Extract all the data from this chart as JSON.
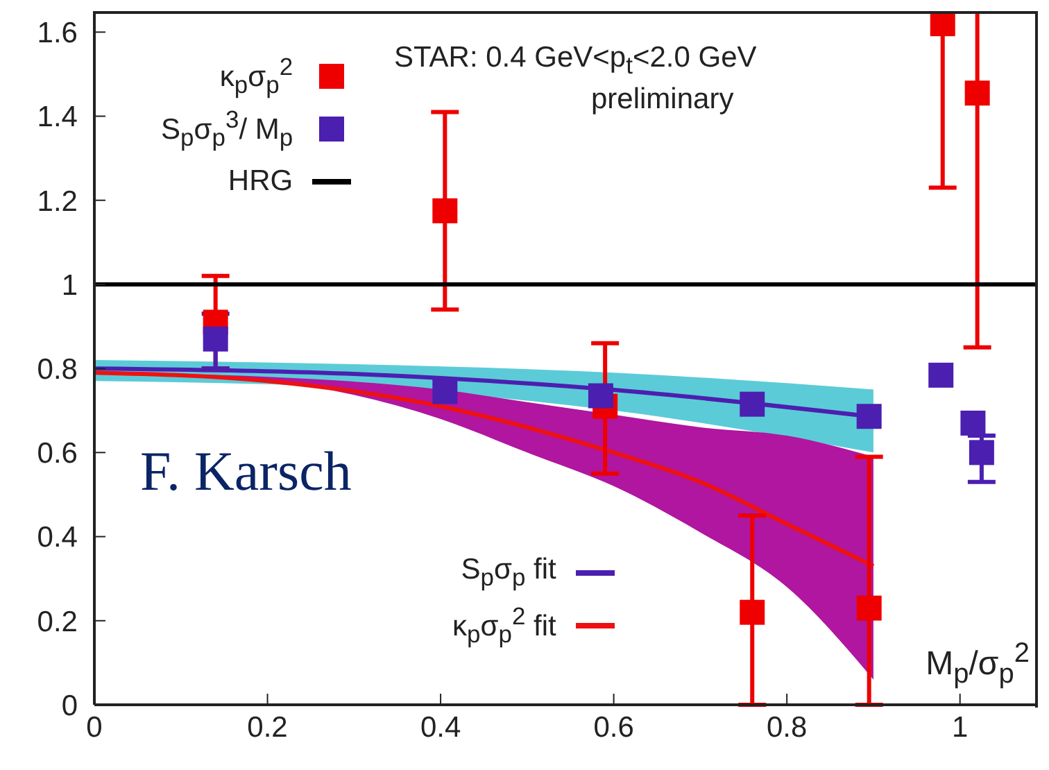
{
  "chart_data": {
    "type": "scatter",
    "xlabel": "M$_{p}$/σ$_{p}$$^{2}$",
    "annotations": [
      "STAR: 0.4 GeV<p$_{t}$<2.0 GeV",
      "preliminary",
      "F. Karsch"
    ],
    "xlim": [
      0,
      1.09
    ],
    "xticks": [
      0,
      0.2,
      0.4,
      0.6,
      0.8,
      1
    ],
    "ylim": [
      0,
      1.65
    ],
    "yticks": [
      0,
      0.2,
      0.4,
      0.6,
      0.8,
      1,
      1.2,
      1.4,
      1.6
    ],
    "marker": "square",
    "legend": "top left",
    "grid": false,
    "ref_lines": [
      {
        "axis": "y",
        "value": 1,
        "label": "HRG",
        "color": "#000000"
      }
    ],
    "series": [
      {
        "type": "line",
        "name": "S$_{p}$σ$_{p}$ fit",
        "color": "#4b1fb0",
        "marker": "none",
        "x": [
          0,
          0.3,
          0.6,
          0.9
        ],
        "values": [
          0.8,
          0.787,
          0.749,
          0.685
        ],
        "lower": [
          0.77,
          0.755,
          0.7,
          0.6
        ],
        "upper": [
          0.82,
          0.81,
          0.79,
          0.75
        ]
      },
      {
        "type": "line",
        "name": "κ$_{p}$σ$_{p}$$^{2}$ fit",
        "color": "#ee1111",
        "marker": "none",
        "x": [
          0,
          0.2,
          0.4,
          0.5,
          0.6,
          0.7,
          0.8,
          0.9
        ],
        "values": [
          0.79,
          0.77,
          0.71,
          0.66,
          0.6,
          0.53,
          0.43,
          0.33
        ],
        "lower": [
          0.79,
          0.77,
          0.68,
          0.6,
          0.52,
          0.41,
          0.28,
          0.06
        ],
        "upper": [
          0.79,
          0.78,
          0.75,
          0.72,
          0.69,
          0.66,
          0.64,
          0.59
        ]
      },
      {
        "name": "κ$_{p}$σ$_{p}$$^{2}$",
        "color": "#ee0000",
        "x": [
          0.14,
          0.405,
          0.59,
          0.76,
          0.895,
          0.98,
          1.02
        ],
        "values": [
          0.91,
          1.175,
          0.71,
          0.22,
          0.23,
          1.62,
          1.455
        ],
        "errors": [
          [
            0.8,
            1.02
          ],
          [
            0.94,
            1.41
          ],
          [
            0.55,
            0.86
          ],
          [
            0,
            0.45
          ],
          [
            0,
            0.59
          ],
          [
            1.23,
            1.65
          ],
          [
            0.85,
            1.65
          ]
        ]
      },
      {
        "name": "S$_{p}$σ$_{p}$$^{3}$/ M$_{p}$",
        "color": "#4b1fb0",
        "x": [
          0.14,
          0.405,
          0.585,
          0.76,
          0.895,
          0.978,
          1.015,
          1.025
        ],
        "values": [
          0.87,
          0.745,
          0.735,
          0.715,
          0.686,
          0.784,
          0.67,
          0.6
        ],
        "errors": [
          [
            0.8,
            0.93
          ],
          null,
          null,
          null,
          null,
          null,
          null,
          [
            0.53,
            0.64
          ]
        ]
      }
    ]
  }
}
